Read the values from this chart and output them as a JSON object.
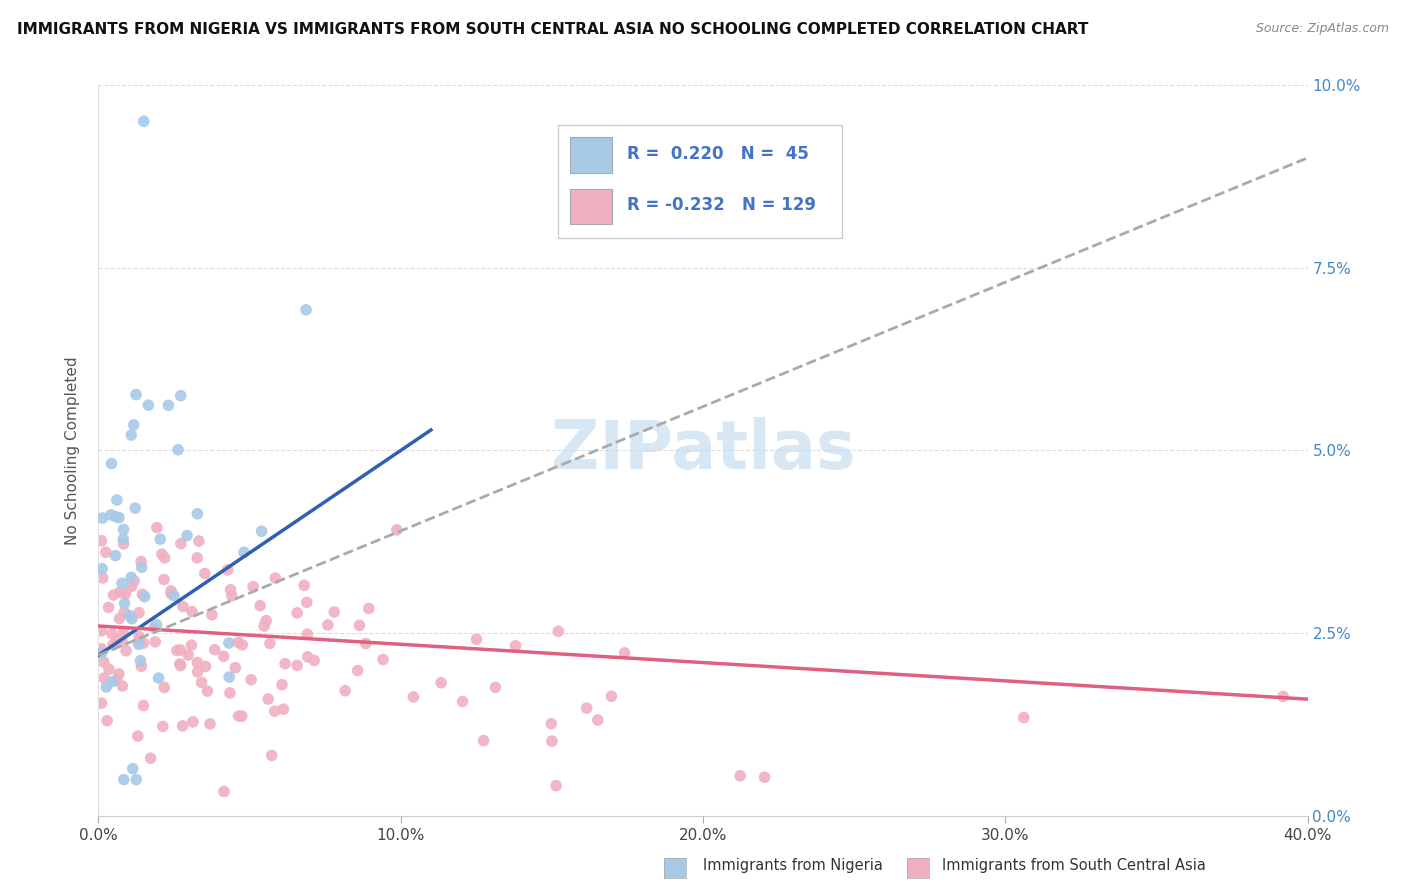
{
  "title": "IMMIGRANTS FROM NIGERIA VS IMMIGRANTS FROM SOUTH CENTRAL ASIA NO SCHOOLING COMPLETED CORRELATION CHART",
  "source": "Source: ZipAtlas.com",
  "ylabel": "No Schooling Completed",
  "xlim": [
    0.0,
    0.4
  ],
  "ylim": [
    0.0,
    0.1
  ],
  "xtick_vals": [
    0.0,
    0.1,
    0.2,
    0.3,
    0.4
  ],
  "xtick_labels": [
    "0.0%",
    "10.0%",
    "20.0%",
    "30.0%",
    "40.0%"
  ],
  "ytick_vals": [
    0.0,
    0.025,
    0.05,
    0.075,
    0.1
  ],
  "ytick_labels_right": [
    "0.0%",
    "2.5%",
    "5.0%",
    "7.5%",
    "10.0%"
  ],
  "legend_x_label": "Immigrants from Nigeria",
  "legend_y_label": "Immigrants from South Central Asia",
  "nigeria_color": "#a8c8e8",
  "nigeria_line_color": "#3060b0",
  "sca_color": "#f0b0c0",
  "sca_line_color": "#e06080",
  "dashed_line_color": "#aaaaaa",
  "watermark_color": "#c8ddf0",
  "nigeria_R": 0.22,
  "nigeria_N": 45,
  "sca_R": -0.232,
  "sca_N": 129,
  "legend_label_color": "#4472c4",
  "right_axis_color": "#4488cc"
}
